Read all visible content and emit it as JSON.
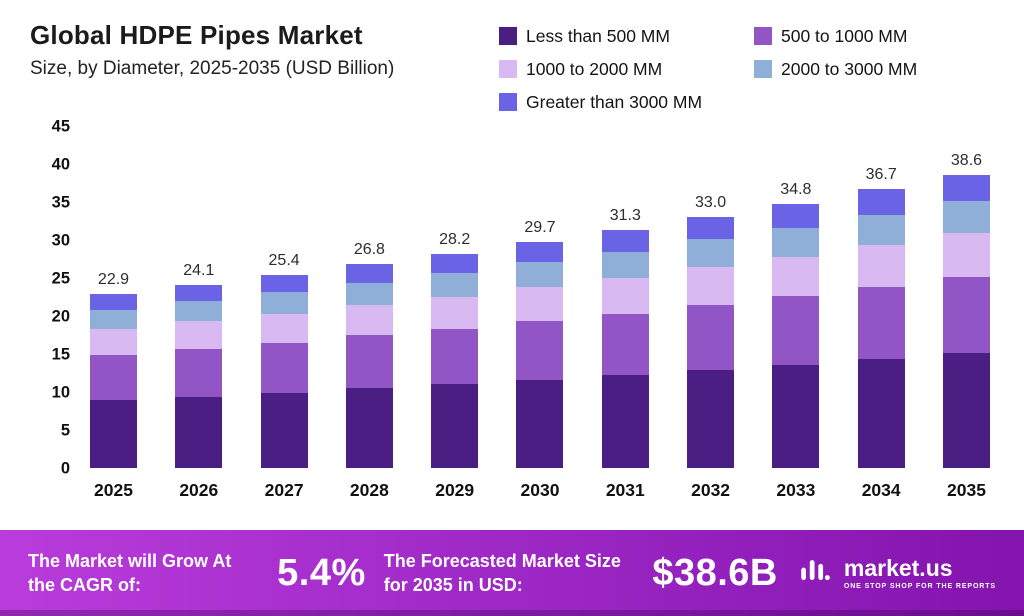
{
  "header": {
    "title": "Global HDPE Pipes Market",
    "subtitle": "Size, by Diameter, 2025-2035 (USD Billion)"
  },
  "chart_data": {
    "type": "bar",
    "stacked": true,
    "title": "Global HDPE Pipes Market Size, by Diameter, 2025-2035 (USD Billion)",
    "xlabel": "",
    "ylabel": "",
    "ylim": [
      0,
      45
    ],
    "yticks": [
      0,
      5,
      10,
      15,
      20,
      25,
      30,
      35,
      40,
      45
    ],
    "grid": false,
    "legend_position": "top-right",
    "categories": [
      "2025",
      "2026",
      "2027",
      "2028",
      "2029",
      "2030",
      "2031",
      "2032",
      "2033",
      "2034",
      "2035"
    ],
    "totals": [
      "22.9",
      "24.1",
      "25.4",
      "26.8",
      "28.2",
      "29.7",
      "31.3",
      "33.0",
      "34.8",
      "36.7",
      "38.6"
    ],
    "series": [
      {
        "name": "Less than 500 MM",
        "color": "#4B1E83",
        "values": [
          8.9,
          9.4,
          9.9,
          10.5,
          11.0,
          11.6,
          12.2,
          12.9,
          13.6,
          14.3,
          15.1
        ]
      },
      {
        "name": "500 to 1000 MM",
        "color": "#9155C6",
        "values": [
          6.0,
          6.3,
          6.6,
          7.0,
          7.3,
          7.7,
          8.1,
          8.6,
          9.0,
          9.5,
          10.0
        ]
      },
      {
        "name": "1000 to 2000 MM",
        "color": "#D9B9F2",
        "values": [
          3.4,
          3.6,
          3.8,
          4.0,
          4.2,
          4.5,
          4.7,
          5.0,
          5.2,
          5.5,
          5.8
        ]
      },
      {
        "name": "2000 to 3000 MM",
        "color": "#8FAFD9",
        "values": [
          2.5,
          2.7,
          2.8,
          2.9,
          3.1,
          3.3,
          3.4,
          3.6,
          3.8,
          4.0,
          4.2
        ]
      },
      {
        "name": "Greater than 3000 MM",
        "color": "#6A63E6",
        "values": [
          2.1,
          2.1,
          2.3,
          2.4,
          2.6,
          2.6,
          2.9,
          2.9,
          3.2,
          3.4,
          3.5
        ]
      }
    ]
  },
  "banner": {
    "cagr_label": "The Market will Grow At the CAGR of:",
    "cagr_value": "5.4%",
    "forecast_label": "The Forecasted Market Size for 2035 in USD:",
    "forecast_value": "$38.6B",
    "brand": "market.us",
    "brand_tagline": "ONE STOP SHOP FOR THE REPORTS"
  }
}
